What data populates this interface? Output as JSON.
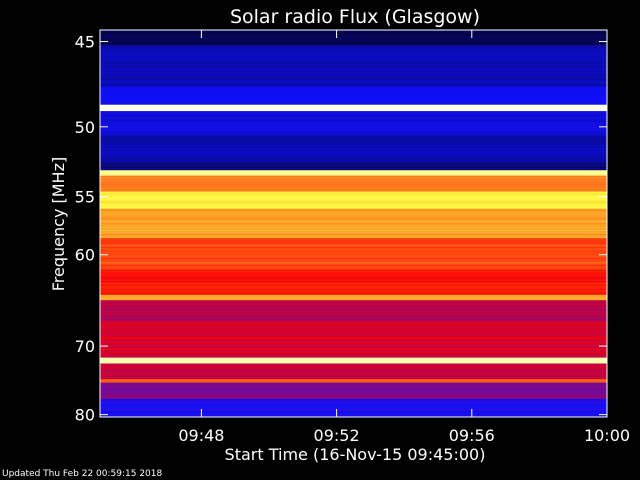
{
  "chart_data": {
    "type": "heatmap",
    "title": "Solar radio Flux (Glasgow)",
    "xlabel": "Start Time (16-Nov-15 09:45:00)",
    "ylabel": "Frequency [MHz]",
    "x_range": [
      "09:45",
      "10:00"
    ],
    "y_range_mhz": [
      44.4,
      80.4
    ],
    "y_axis": "reciprocal",
    "x_ticks": [
      "09:48",
      "09:52",
      "09:56",
      "10:00"
    ],
    "y_ticks": [
      45,
      50,
      55,
      60,
      70,
      80
    ],
    "colormap": [
      "#000000",
      "#1010ff",
      "#ff0000",
      "#ffff40",
      "#ffffff"
    ],
    "frequency_bands": [
      {
        "from_mhz": 44.4,
        "to_mhz": 45.2,
        "level": 0.08
      },
      {
        "from_mhz": 45.2,
        "to_mhz": 47.5,
        "level": 0.18
      },
      {
        "from_mhz": 47.5,
        "to_mhz": 48.6,
        "level": 0.24
      },
      {
        "from_mhz": 48.6,
        "to_mhz": 49.0,
        "level": 0.97
      },
      {
        "from_mhz": 49.0,
        "to_mhz": 50.6,
        "level": 0.22
      },
      {
        "from_mhz": 50.6,
        "to_mhz": 52.4,
        "level": 0.17
      },
      {
        "from_mhz": 52.4,
        "to_mhz": 53.0,
        "level": 0.12
      },
      {
        "from_mhz": 53.0,
        "to_mhz": 53.4,
        "level": 0.86
      },
      {
        "from_mhz": 53.4,
        "to_mhz": 54.6,
        "level": 0.62
      },
      {
        "from_mhz": 54.6,
        "to_mhz": 56.0,
        "level": 0.74
      },
      {
        "from_mhz": 56.0,
        "to_mhz": 58.5,
        "level": 0.66
      },
      {
        "from_mhz": 58.5,
        "to_mhz": 61.5,
        "level": 0.57
      },
      {
        "from_mhz": 61.5,
        "to_mhz": 64.0,
        "level": 0.52
      },
      {
        "from_mhz": 64.0,
        "to_mhz": 64.6,
        "level": 0.66
      },
      {
        "from_mhz": 64.6,
        "to_mhz": 67.0,
        "level": 0.42
      },
      {
        "from_mhz": 67.0,
        "to_mhz": 71.5,
        "level": 0.46
      },
      {
        "from_mhz": 71.5,
        "to_mhz": 72.3,
        "level": 0.9
      },
      {
        "from_mhz": 72.3,
        "to_mhz": 74.5,
        "level": 0.44
      },
      {
        "from_mhz": 74.5,
        "to_mhz": 75.0,
        "level": 0.6
      },
      {
        "from_mhz": 75.0,
        "to_mhz": 77.5,
        "level": 0.36
      },
      {
        "from_mhz": 77.5,
        "to_mhz": 80.4,
        "level": 0.26
      }
    ],
    "grid": false
  },
  "footer": {
    "updated": "Updated Thu Feb 22 00:59:15 2018"
  }
}
